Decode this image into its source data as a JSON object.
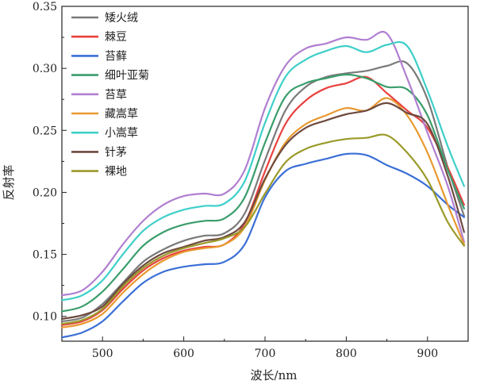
{
  "chart_data": {
    "type": "line",
    "title": "",
    "xlabel": "波长/nm",
    "ylabel": "反射率",
    "xlim": [
      450,
      950
    ],
    "ylim": [
      0.08,
      0.35
    ],
    "x_ticks": [
      500,
      600,
      700,
      800,
      900
    ],
    "y_ticks": [
      0.1,
      0.15,
      0.2,
      0.25,
      0.3,
      0.35
    ],
    "y_tick_labels": [
      "0.10",
      "0.15",
      "0.20",
      "0.25",
      "0.30",
      "0.35"
    ],
    "grid": false,
    "legend_position": "top-left",
    "x": [
      450,
      475,
      500,
      525,
      550,
      575,
      600,
      625,
      650,
      675,
      700,
      725,
      750,
      775,
      800,
      825,
      850,
      875,
      900,
      925,
      945
    ],
    "series": [
      {
        "name": "矮火绒",
        "color": "#7a7a7a",
        "values": [
          0.096,
          0.099,
          0.11,
          0.127,
          0.144,
          0.154,
          0.161,
          0.165,
          0.167,
          0.183,
          0.226,
          0.266,
          0.285,
          0.293,
          0.296,
          0.298,
          0.302,
          0.304,
          0.275,
          0.22,
          0.181
        ]
      },
      {
        "name": "棘豆",
        "color": "#e8413f",
        "values": [
          0.093,
          0.096,
          0.105,
          0.122,
          0.137,
          0.147,
          0.153,
          0.156,
          0.158,
          0.175,
          0.217,
          0.255,
          0.274,
          0.284,
          0.288,
          0.293,
          0.28,
          0.266,
          0.252,
          0.22,
          0.19
        ]
      },
      {
        "name": "苔藓",
        "color": "#3b6fd6",
        "values": [
          0.083,
          0.087,
          0.096,
          0.112,
          0.127,
          0.136,
          0.14,
          0.142,
          0.144,
          0.158,
          0.196,
          0.217,
          0.223,
          0.227,
          0.231,
          0.23,
          0.222,
          0.215,
          0.205,
          0.19,
          0.18
        ]
      },
      {
        "name": "细叶亚菊",
        "color": "#3a9d6b",
        "values": [
          0.104,
          0.108,
          0.12,
          0.138,
          0.157,
          0.168,
          0.174,
          0.177,
          0.179,
          0.196,
          0.24,
          0.277,
          0.288,
          0.292,
          0.295,
          0.292,
          0.285,
          0.283,
          0.262,
          0.218,
          0.187
        ]
      },
      {
        "name": "苔草",
        "color": "#b07fd1",
        "values": [
          0.117,
          0.121,
          0.136,
          0.158,
          0.177,
          0.19,
          0.197,
          0.199,
          0.199,
          0.218,
          0.268,
          0.302,
          0.316,
          0.32,
          0.325,
          0.323,
          0.328,
          0.292,
          0.248,
          0.205,
          0.16
        ]
      },
      {
        "name": "藏嵩草",
        "color": "#e8992f",
        "values": [
          0.091,
          0.094,
          0.102,
          0.119,
          0.134,
          0.145,
          0.152,
          0.155,
          0.158,
          0.172,
          0.21,
          0.24,
          0.255,
          0.262,
          0.268,
          0.266,
          0.276,
          0.262,
          0.232,
          0.19,
          0.158
        ]
      },
      {
        "name": "小嵩草",
        "color": "#3ecfc9",
        "values": [
          0.113,
          0.117,
          0.129,
          0.15,
          0.169,
          0.18,
          0.186,
          0.189,
          0.191,
          0.209,
          0.256,
          0.293,
          0.307,
          0.314,
          0.318,
          0.313,
          0.319,
          0.318,
          0.282,
          0.237,
          0.205
        ]
      },
      {
        "name": "针茅",
        "color": "#6e4a3f",
        "values": [
          0.098,
          0.101,
          0.108,
          0.126,
          0.141,
          0.151,
          0.156,
          0.161,
          0.164,
          0.176,
          0.211,
          0.238,
          0.252,
          0.258,
          0.263,
          0.266,
          0.272,
          0.264,
          0.255,
          0.213,
          0.168
        ]
      },
      {
        "name": "裸地",
        "color": "#9a9a2a",
        "values": [
          0.094,
          0.097,
          0.106,
          0.124,
          0.139,
          0.149,
          0.155,
          0.159,
          0.163,
          0.172,
          0.199,
          0.224,
          0.235,
          0.24,
          0.243,
          0.244,
          0.246,
          0.232,
          0.21,
          0.176,
          0.157
        ]
      }
    ]
  }
}
